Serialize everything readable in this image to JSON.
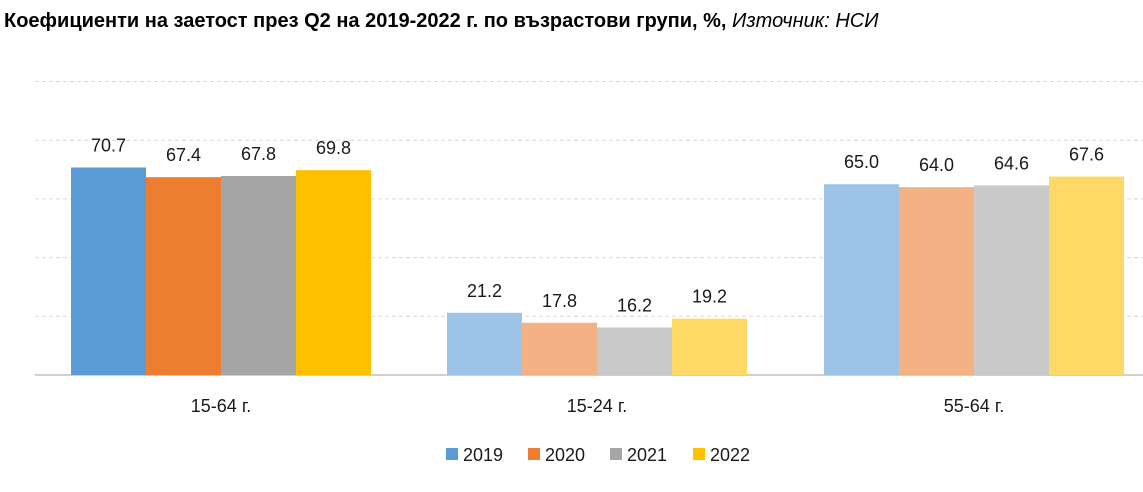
{
  "chart_title": "Коефициенти на заетост през Q2 на 2019-2022 г. по възрастови групи, %,",
  "chart_source": "Източник: НСИ",
  "chart_data": {
    "type": "bar",
    "title": "Коефициенти на заетост през Q2 на 2019-2022 г. по възрастови групи, %, Източник: НСИ",
    "categories": [
      "15-64 г.",
      "15-24 г.",
      "55-64 г."
    ],
    "series": [
      {
        "name": "2019",
        "values": [
          70.7,
          21.2,
          65.0
        ],
        "labels": [
          "70.7",
          "21.2",
          "65.0"
        ],
        "colors": [
          "#5b9bd5",
          "#9dc3e6",
          "#9dc3e6"
        ]
      },
      {
        "name": "2020",
        "values": [
          67.4,
          17.8,
          64.0
        ],
        "labels": [
          "67.4",
          "17.8",
          "64.0"
        ],
        "colors": [
          "#ed7d31",
          "#f4b183",
          "#f4b183"
        ]
      },
      {
        "name": "2021",
        "values": [
          67.8,
          16.2,
          64.6
        ],
        "labels": [
          "67.8",
          "16.2",
          "64.6"
        ],
        "colors": [
          "#a5a5a5",
          "#c9c9c9",
          "#c9c9c9"
        ]
      },
      {
        "name": "2022",
        "values": [
          69.8,
          19.2,
          67.6
        ],
        "labels": [
          "69.8",
          "19.2",
          "67.6"
        ],
        "colors": [
          "#ffc000",
          "#ffd966",
          "#ffd966"
        ]
      }
    ],
    "ylim": [
      0,
      100
    ],
    "grid": true,
    "legend": "bottom",
    "legend_colors": [
      "#5b9bd5",
      "#ed7d31",
      "#a5a5a5",
      "#ffc000"
    ]
  }
}
